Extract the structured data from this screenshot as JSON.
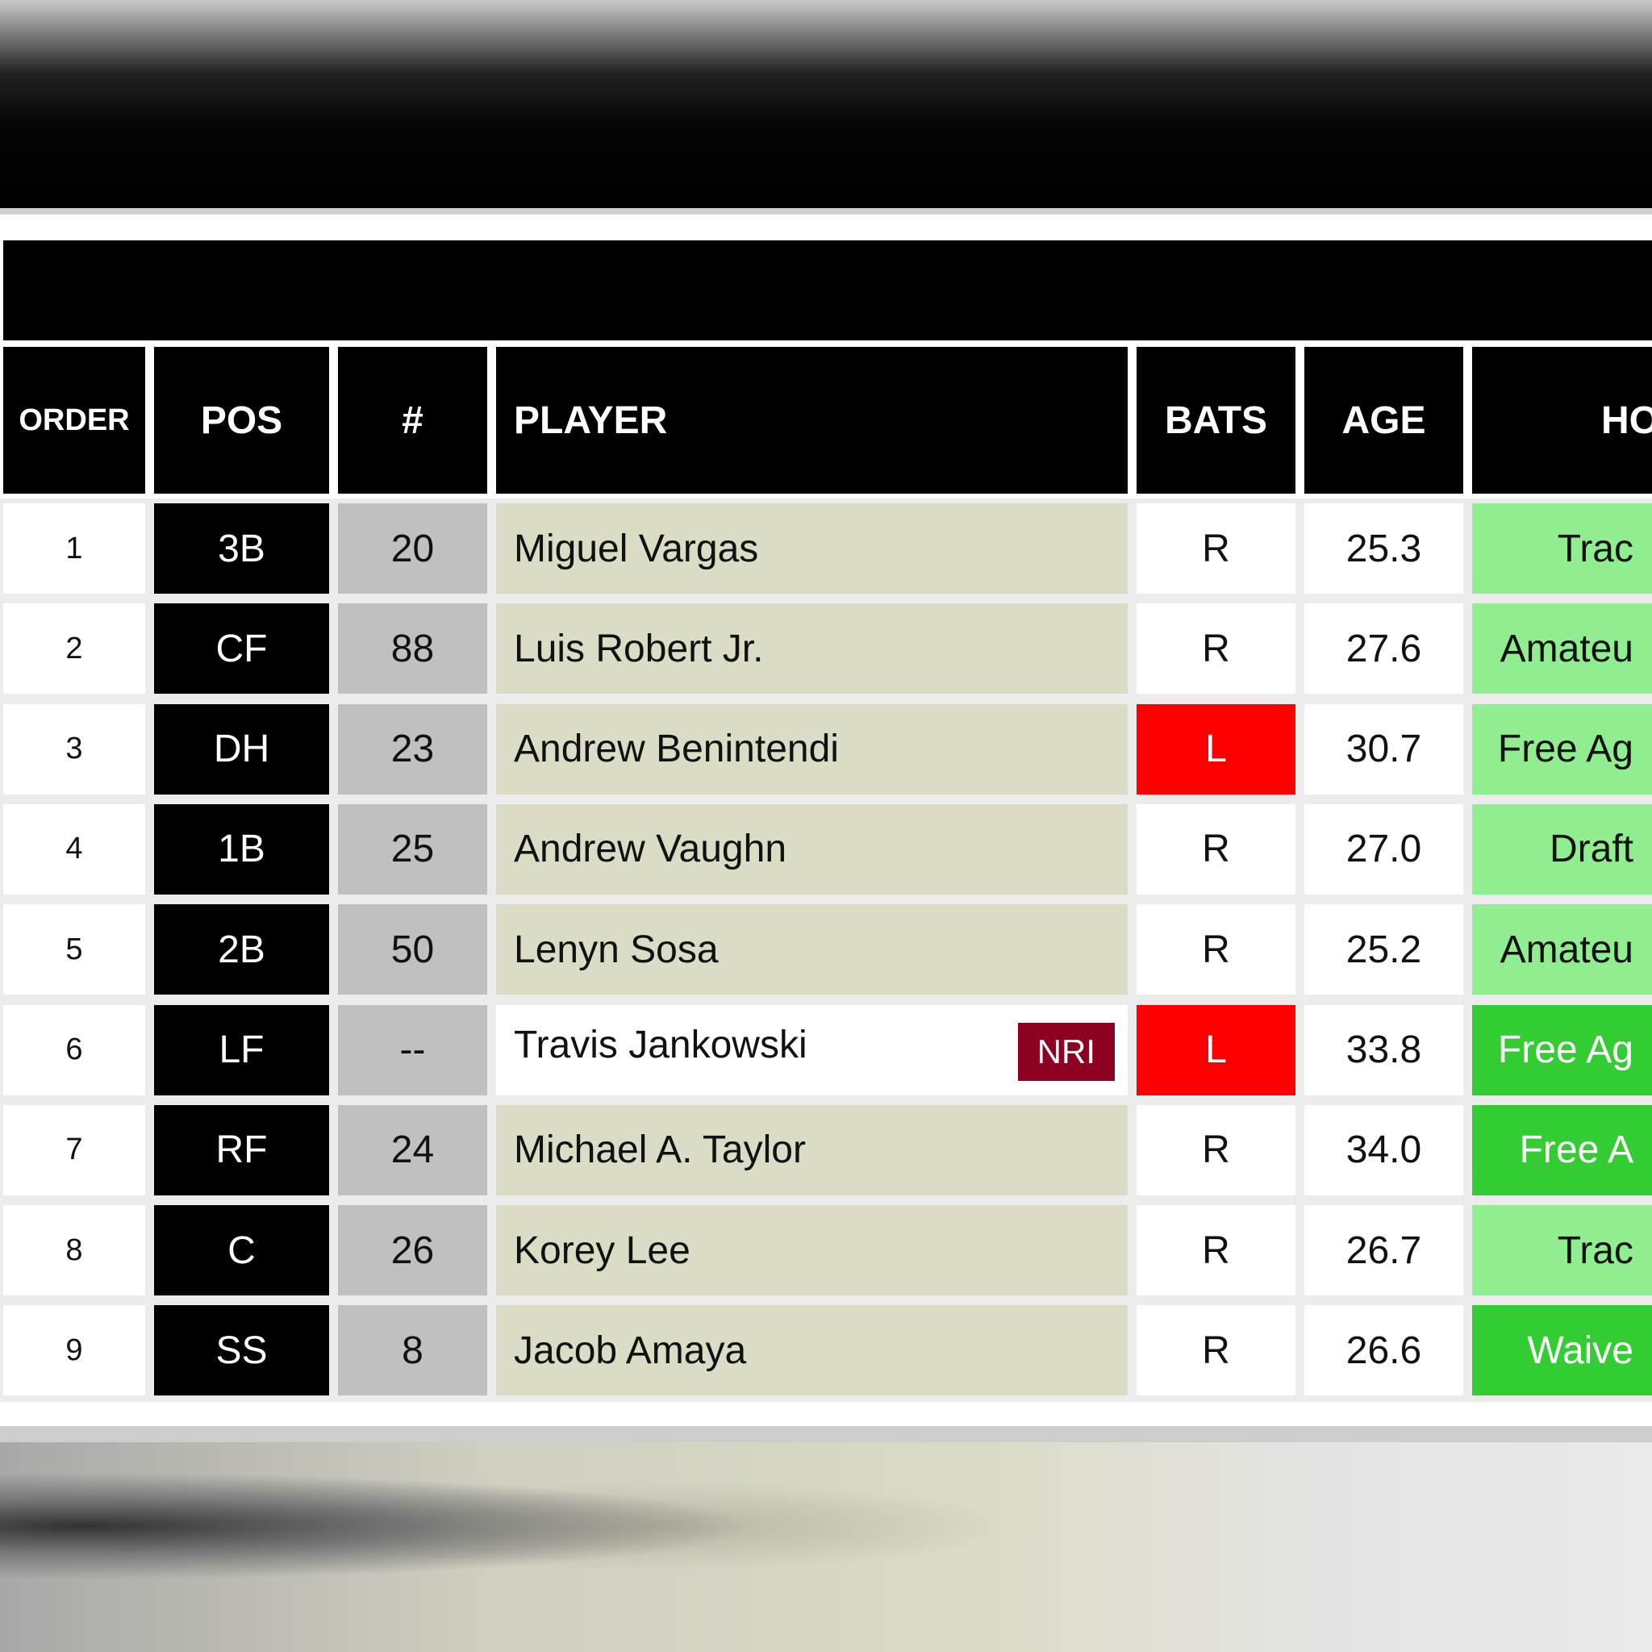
{
  "table": {
    "headers": [
      "ORDER",
      "POS",
      "#",
      "PLAYER",
      "BATS",
      "AGE",
      "HO"
    ],
    "rows": [
      {
        "order": "1",
        "pos": "3B",
        "num": "20",
        "player": "Miguel Vargas",
        "bats": "R",
        "age": "25.3",
        "how": "Trac",
        "how_level": "light"
      },
      {
        "order": "2",
        "pos": "CF",
        "num": "88",
        "player": "Luis Robert Jr.",
        "bats": "R",
        "age": "27.6",
        "how": "Amateu",
        "how_level": "light"
      },
      {
        "order": "3",
        "pos": "DH",
        "num": "23",
        "player": "Andrew Benintendi",
        "bats": "L",
        "age": "30.7",
        "how": "Free Ag",
        "how_level": "light"
      },
      {
        "order": "4",
        "pos": "1B",
        "num": "25",
        "player": "Andrew Vaughn",
        "bats": "R",
        "age": "27.0",
        "how": "Draft",
        "how_level": "light"
      },
      {
        "order": "5",
        "pos": "2B",
        "num": "50",
        "player": "Lenyn Sosa",
        "bats": "R",
        "age": "25.2",
        "how": "Amateu",
        "how_level": "light"
      },
      {
        "order": "6",
        "pos": "LF",
        "num": "--",
        "player": "Travis Jankowski",
        "badge": "NRI",
        "bats": "L",
        "age": "33.8",
        "how": "Free Ag",
        "how_level": "dark"
      },
      {
        "order": "7",
        "pos": "RF",
        "num": "24",
        "player": "Michael A. Taylor",
        "bats": "R",
        "age": "34.0",
        "how": "Free A",
        "how_level": "dark"
      },
      {
        "order": "8",
        "pos": "C",
        "num": "26",
        "player": "Korey Lee",
        "bats": "R",
        "age": "26.7",
        "how": "Trac",
        "how_level": "light"
      },
      {
        "order": "9",
        "pos": "SS",
        "num": "8",
        "player": "Jacob Amaya",
        "bats": "R",
        "age": "26.6",
        "how": "Waive",
        "how_level": "dark"
      }
    ]
  },
  "colors": {
    "lefty": "#ff0000",
    "how_light": "#90ee90",
    "how_dark": "#33cc33",
    "nri_badge": "#8b0020",
    "player_bg": "#dcdbc5",
    "nri_player_bg": "#ffffff",
    "number_bg": "#c0c0c0"
  }
}
